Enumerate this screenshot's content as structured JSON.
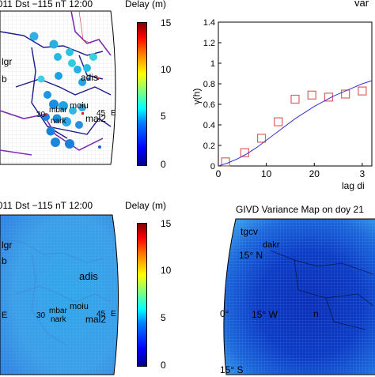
{
  "panels": {
    "tl": {
      "title": "3 2011 Dst −115 nT 12:00",
      "colorbar_title": "Delay (m)",
      "colorbar_ticks": [
        "15",
        "10",
        "5",
        "0"
      ],
      "station_labels": [
        "lgr",
        "b",
        "adis",
        "30",
        "mbar",
        "moiu",
        "nark",
        "mal2",
        "45",
        "E"
      ]
    },
    "tr": {
      "title": "var"
    },
    "bl": {
      "title": "3 2011 Dst −115 nT 12:00",
      "colorbar_title": "Delay (m)",
      "colorbar_ticks": [
        "15",
        "10",
        "5",
        "0"
      ],
      "station_labels": [
        "lgr",
        "b",
        "adis",
        "30",
        "mbar",
        "moiu",
        "nark",
        "mal2",
        "45",
        "E",
        "E"
      ]
    },
    "br": {
      "title": "GIVD  Variance Map on doy 21",
      "lat_labels": [
        "15° N",
        "0°",
        "15° S"
      ],
      "lon_labels": [
        "15° W"
      ],
      "station_labels": [
        "tgcv",
        "dakr",
        "n"
      ]
    }
  },
  "chart_data": {
    "type": "scatter",
    "title": "",
    "xlabel": "lag di",
    "ylabel": "γ(h)",
    "xlim": [
      0,
      32
    ],
    "ylim": [
      0,
      1.4
    ],
    "xticks": [
      "0",
      "10",
      "20",
      "3"
    ],
    "yticks": [
      "0",
      "0.2",
      "0.4",
      "0.6",
      "0.8",
      "1",
      "1.2",
      "1.4"
    ],
    "series": [
      {
        "kind": "points",
        "x": [
          1.5,
          5.5,
          9.0,
          12.5,
          16.0,
          19.5,
          23.0,
          26.5,
          30.0
        ],
        "y": [
          0.04,
          0.13,
          0.27,
          0.43,
          0.65,
          0.69,
          0.67,
          0.7,
          0.73
        ],
        "color": "#e06060"
      },
      {
        "kind": "line",
        "x": [
          0,
          2,
          4,
          6,
          8,
          10,
          12,
          14,
          16,
          18,
          20,
          22,
          24,
          26,
          28,
          30,
          32
        ],
        "y": [
          0,
          0.03,
          0.07,
          0.12,
          0.18,
          0.25,
          0.32,
          0.39,
          0.46,
          0.52,
          0.58,
          0.63,
          0.68,
          0.72,
          0.76,
          0.8,
          0.83
        ],
        "color": "#3333cc"
      }
    ]
  }
}
